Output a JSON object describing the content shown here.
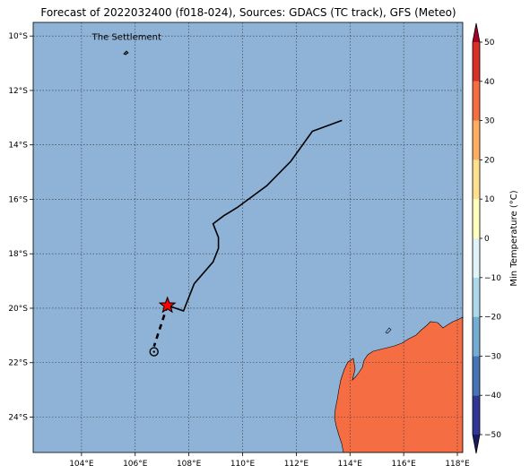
{
  "title": "Forecast of 2022032400 (f018-024), Sources: GDACS (TC track), GFS (Meteo)",
  "map": {
    "lon_range": [
      102.2,
      118.2
    ],
    "lat_range": [
      -25.3,
      -9.5
    ],
    "x_ticks": [
      {
        "value": 104,
        "label": "104°E"
      },
      {
        "value": 106,
        "label": "106°E"
      },
      {
        "value": 108,
        "label": "108°E"
      },
      {
        "value": 110,
        "label": "110°E"
      },
      {
        "value": 112,
        "label": "112°E"
      },
      {
        "value": 114,
        "label": "114°E"
      },
      {
        "value": 116,
        "label": "116°E"
      },
      {
        "value": 118,
        "label": "118°E"
      }
    ],
    "y_ticks": [
      {
        "value": -10,
        "label": "10°S"
      },
      {
        "value": -12,
        "label": "12°S"
      },
      {
        "value": -14,
        "label": "14°S"
      },
      {
        "value": -16,
        "label": "16°S"
      },
      {
        "value": -18,
        "label": "18°S"
      },
      {
        "value": -20,
        "label": "20°S"
      },
      {
        "value": -22,
        "label": "22°S"
      },
      {
        "value": -24,
        "label": "24°S"
      }
    ],
    "gridlines": true,
    "ocean_color": "#8fb3d7",
    "land_color": "#f46d43",
    "place_label": {
      "text": "The Settlement",
      "lon": 105.7,
      "lat": -10.5
    },
    "past_track": [
      [
        113.7,
        -13.1
      ],
      [
        112.6,
        -13.5
      ],
      [
        111.8,
        -14.6
      ],
      [
        110.9,
        -15.5
      ],
      [
        109.8,
        -16.3
      ],
      [
        109.3,
        -16.6
      ],
      [
        108.9,
        -16.9
      ],
      [
        109.1,
        -17.4
      ],
      [
        109.1,
        -17.8
      ],
      [
        108.9,
        -18.3
      ],
      [
        108.2,
        -19.1
      ],
      [
        107.8,
        -20.1
      ],
      [
        107.2,
        -19.9
      ]
    ],
    "forecast_track": [
      [
        107.2,
        -19.9
      ],
      [
        106.7,
        -21.6
      ]
    ],
    "current_position": {
      "lon": 107.2,
      "lat": -19.9,
      "color": "#ff0000"
    },
    "forecast_position": {
      "lon": 106.7,
      "lat": -21.6
    }
  },
  "colorbar": {
    "label": "Min Temperature (°C)",
    "range": [
      -50,
      50
    ],
    "ticks": [
      {
        "value": 50,
        "label": "50"
      },
      {
        "value": 40,
        "label": "40"
      },
      {
        "value": 30,
        "label": "30"
      },
      {
        "value": 20,
        "label": "20"
      },
      {
        "value": 10,
        "label": "10"
      },
      {
        "value": 0,
        "label": "0"
      },
      {
        "value": -10,
        "label": "−10"
      },
      {
        "value": -20,
        "label": "−20"
      },
      {
        "value": -30,
        "label": "−30"
      },
      {
        "value": -40,
        "label": "−40"
      },
      {
        "value": -50,
        "label": "−50"
      }
    ],
    "bins": [
      {
        "from": -50,
        "to": -40,
        "color": "#313695"
      },
      {
        "from": -40,
        "to": -30,
        "color": "#4575b4"
      },
      {
        "from": -30,
        "to": -20,
        "color": "#74add1"
      },
      {
        "from": -20,
        "to": -10,
        "color": "#abd9e9"
      },
      {
        "from": -10,
        "to": 0,
        "color": "#e0f3f8"
      },
      {
        "from": 0,
        "to": 10,
        "color": "#ffffbf"
      },
      {
        "from": 10,
        "to": 20,
        "color": "#fee090"
      },
      {
        "from": 20,
        "to": 30,
        "color": "#fdae61"
      },
      {
        "from": 30,
        "to": 40,
        "color": "#f46d43"
      },
      {
        "from": 40,
        "to": 50,
        "color": "#d73027"
      }
    ],
    "extend_low_color": "#1a1a5e",
    "extend_high_color": "#a50026"
  }
}
